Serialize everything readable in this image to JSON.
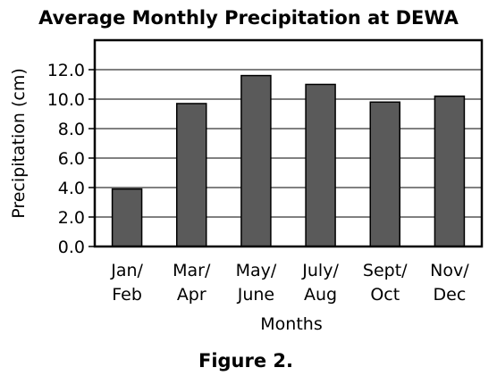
{
  "chart_data": {
    "type": "bar",
    "title": "Average Monthly Precipitation at DEWA",
    "xlabel": "Months",
    "ylabel": "Precipitation (cm)",
    "categories": [
      [
        "Jan/",
        "Feb"
      ],
      [
        "Mar/",
        "Apr"
      ],
      [
        "May/",
        "June"
      ],
      [
        "July/",
        "Aug"
      ],
      [
        "Sept/",
        "Oct"
      ],
      [
        "Nov/",
        "Dec"
      ]
    ],
    "values": [
      3.9,
      9.7,
      11.6,
      11.0,
      9.8,
      10.2
    ],
    "ylim": [
      0,
      14
    ],
    "yticks": [
      0,
      2,
      4,
      6,
      8,
      10,
      12
    ],
    "ytick_labels": [
      "0.0",
      "2.0",
      "4.0",
      "6.0",
      "8.0",
      "10.0",
      "12.0"
    ],
    "grid": true,
    "bar_color": "#5a5a5a",
    "caption": "Figure 2."
  }
}
